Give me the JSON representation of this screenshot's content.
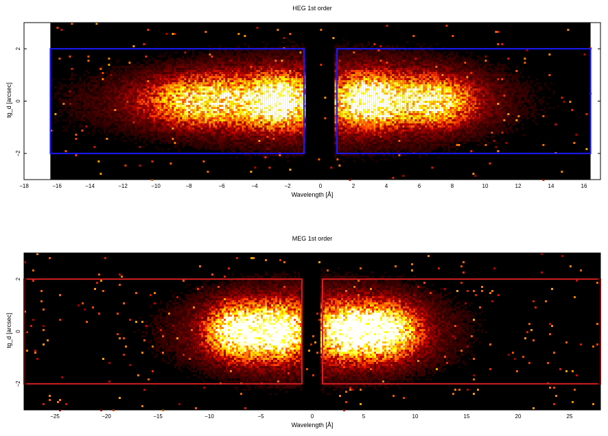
{
  "chart_data": [
    {
      "type": "heatmap",
      "title": "HEG 1st order",
      "xlabel": "Wavelength [Å]",
      "ylabel": "tg_d [arcsec]",
      "xlim": [
        -18,
        17
      ],
      "ylim": [
        -3,
        3
      ],
      "xticks": [
        -18,
        -16,
        -14,
        -12,
        -10,
        -8,
        -6,
        -4,
        -2,
        0,
        2,
        4,
        6,
        8,
        10,
        12,
        14,
        16
      ],
      "yticks": [
        -2,
        0,
        2
      ],
      "grid": false,
      "data_extent_x": [
        -16.4,
        16.4
      ],
      "colormap": "black-red-orange-yellow-white (hot)",
      "extraction_box_color": "#1a1aff",
      "extraction_regions": [
        {
          "x": [
            -16.4,
            -1
          ],
          "y": [
            -2,
            2
          ]
        },
        {
          "x": [
            1,
            16.4
          ],
          "y": [
            -2,
            2
          ]
        }
      ],
      "emission_blobs": [
        {
          "x": -2.6,
          "y": 0,
          "sx": 1.1,
          "sy": 0.55,
          "peak": 1.0
        },
        {
          "x": -7.0,
          "y": 0,
          "sx": 2.4,
          "sy": 0.6,
          "peak": 0.7
        },
        {
          "x": 3.0,
          "y": 0,
          "sx": 1.2,
          "sy": 0.55,
          "peak": 1.0
        },
        {
          "x": 6.8,
          "y": 0,
          "sx": 1.6,
          "sy": 0.55,
          "peak": 0.72
        }
      ]
    },
    {
      "type": "heatmap",
      "title": "MEG 1st order",
      "xlabel": "Wavelength [Å]",
      "ylabel": "tg_d [arcsec]",
      "xlim": [
        -28,
        28
      ],
      "ylim": [
        -3,
        3
      ],
      "xticks": [
        -25,
        -20,
        -15,
        -10,
        -5,
        0,
        5,
        10,
        15,
        20,
        25
      ],
      "yticks": [
        -2,
        0,
        2
      ],
      "grid": false,
      "colormap": "black-red-orange-yellow-white (hot)",
      "extraction_box_color": "#d42020",
      "extraction_regions": [
        {
          "x": [
            -28,
            -1
          ],
          "y": [
            -2,
            2
          ]
        },
        {
          "x": [
            1,
            28
          ],
          "y": [
            -2,
            2
          ]
        }
      ],
      "emission_blobs": [
        {
          "x": -7.0,
          "y": 0,
          "sx": 1.9,
          "sy": 0.6,
          "peak": 1.0
        },
        {
          "x": -3.2,
          "y": 0,
          "sx": 1.3,
          "sy": 0.55,
          "peak": 1.0
        },
        {
          "x": 3.4,
          "y": 0,
          "sx": 1.5,
          "sy": 0.55,
          "peak": 1.0
        },
        {
          "x": 7.0,
          "y": 0,
          "sx": 1.9,
          "sy": 0.6,
          "peak": 1.0
        }
      ]
    }
  ]
}
